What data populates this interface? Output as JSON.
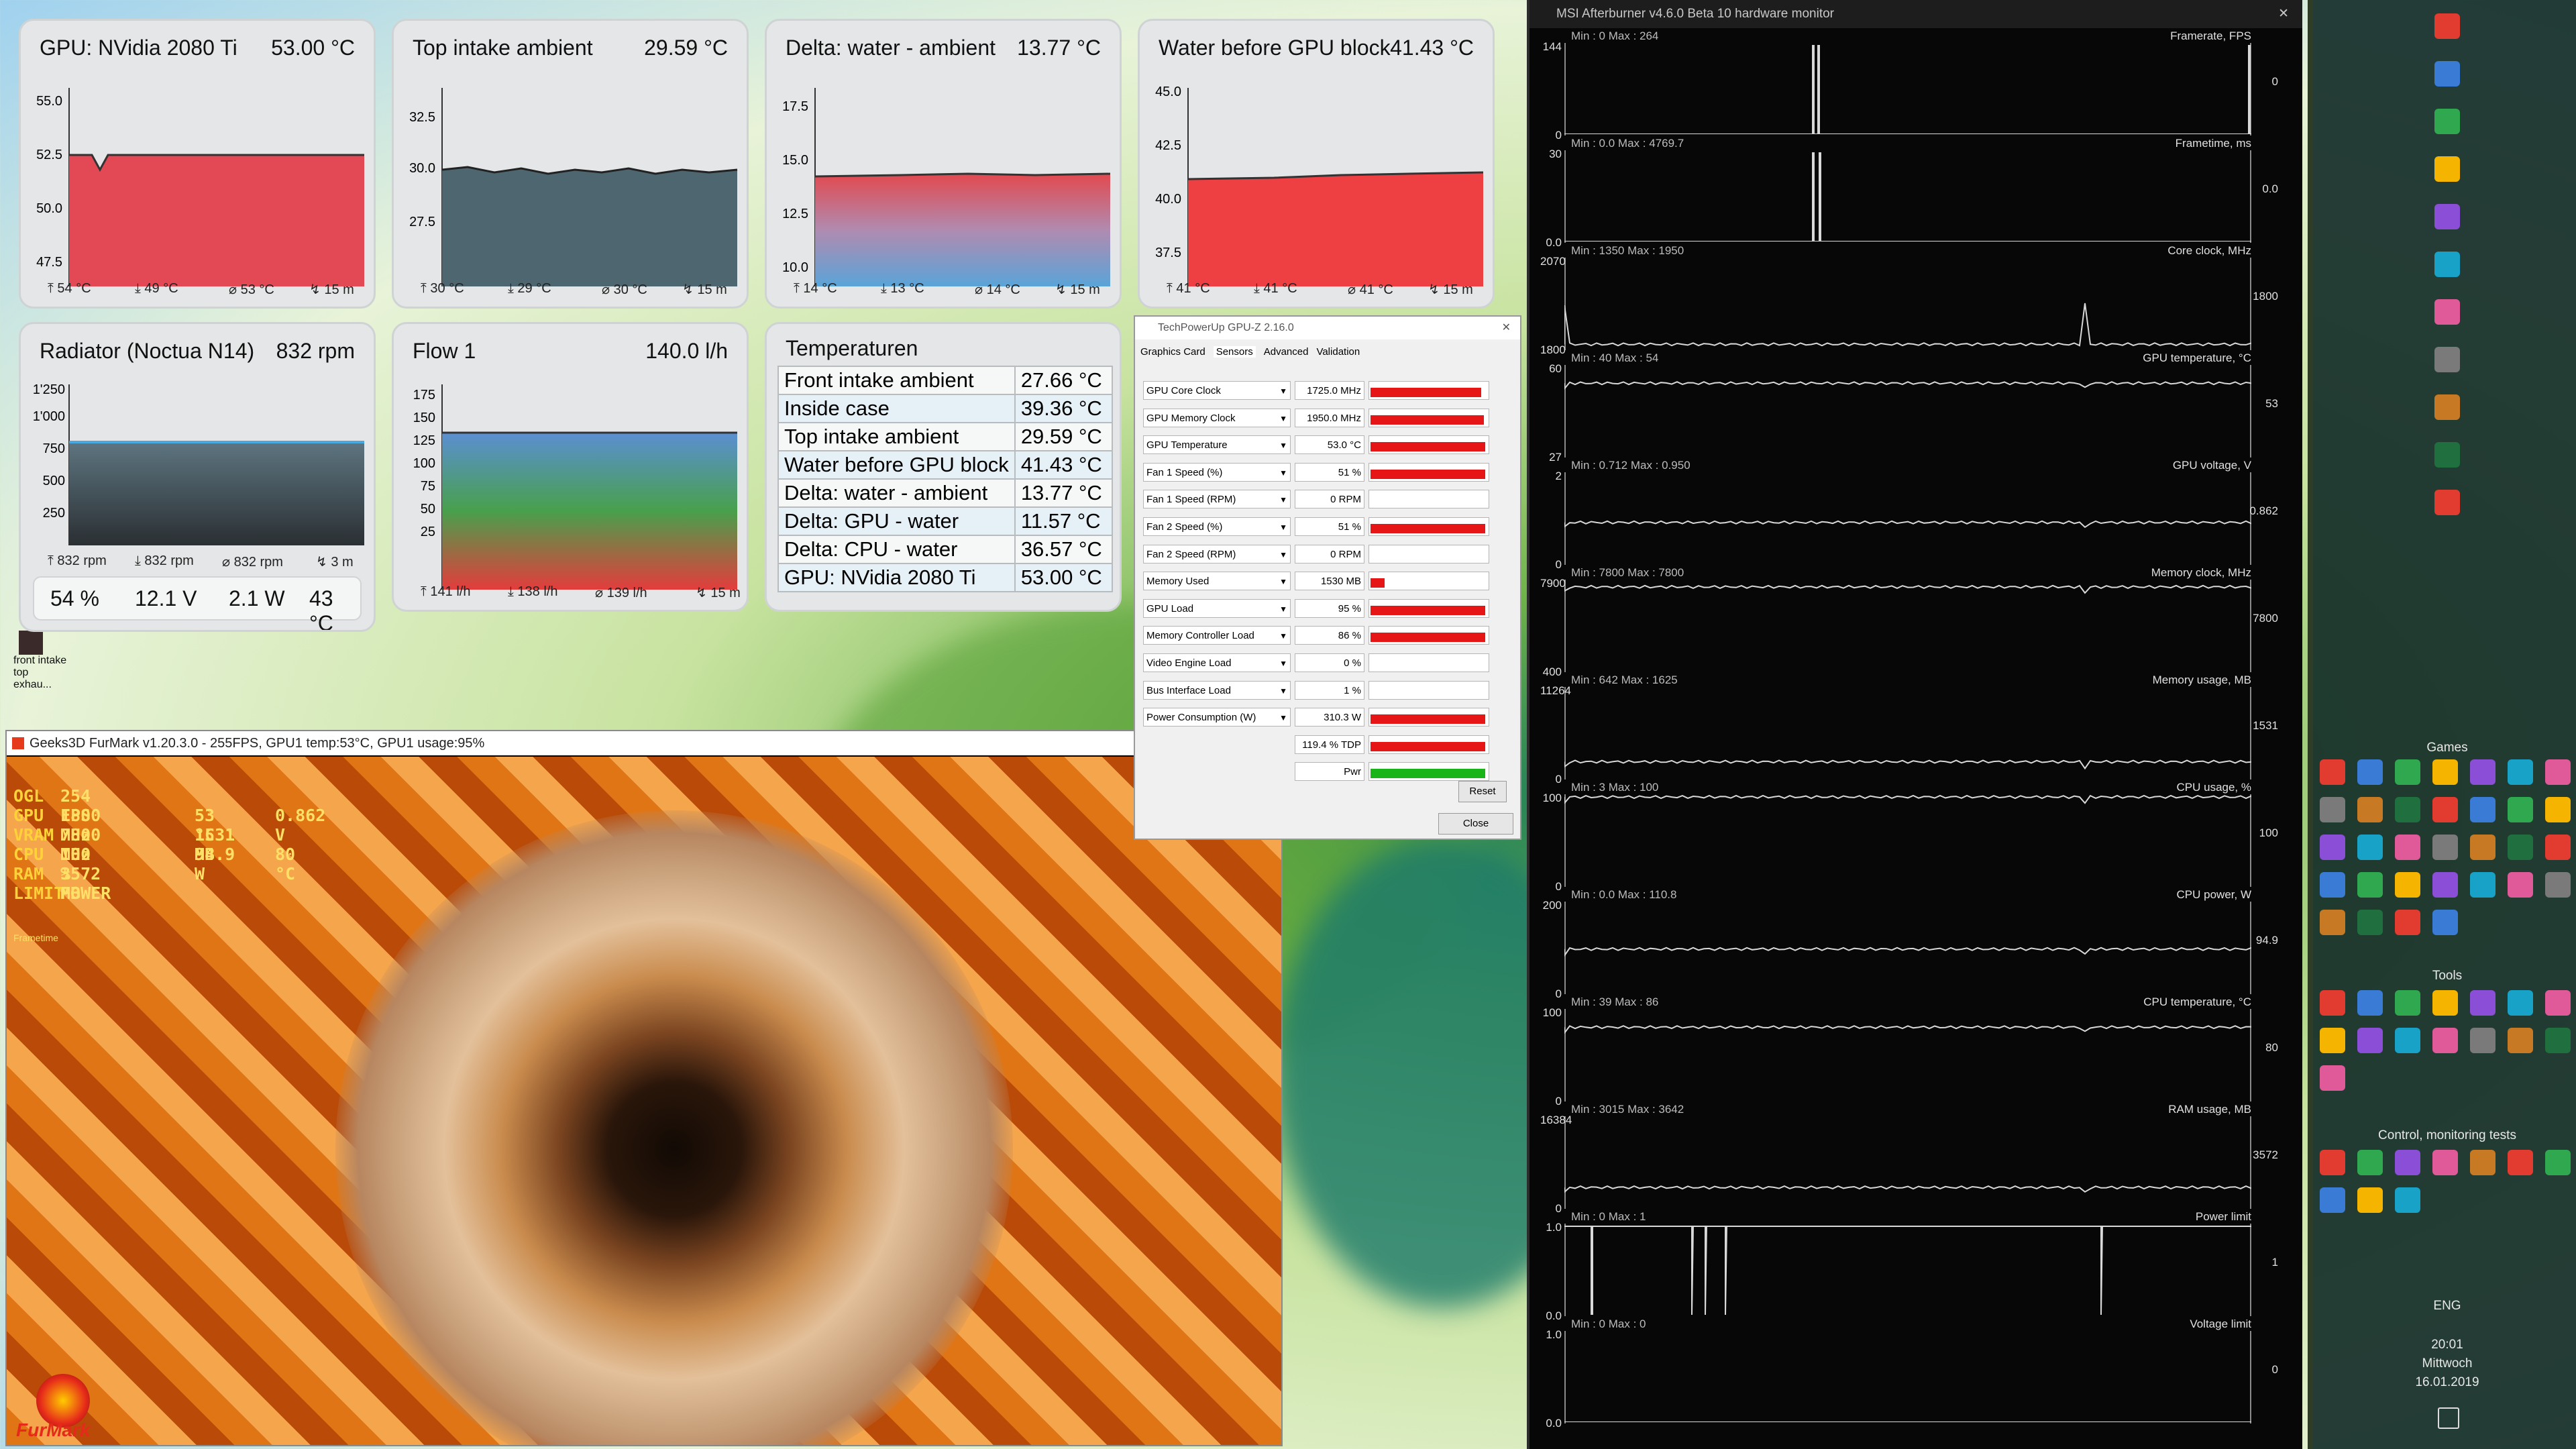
{
  "widgets": {
    "gpu": {
      "title": "GPU: NVidia 2080 Ti",
      "value": "53.00 °C",
      "yticks": [
        "55.0",
        "52.5",
        "50.0",
        "47.5"
      ],
      "footer": [
        "⤒ 54 °C",
        "⤓ 49 °C",
        "⌀ 53 °C",
        "↯ 15 m"
      ]
    },
    "top_intake": {
      "title": "Top intake ambient",
      "value": "29.59 °C",
      "yticks": [
        "32.5",
        "30.0",
        "27.5"
      ],
      "footer": [
        "⤒ 30 °C",
        "⤓ 29 °C",
        "⌀ 30 °C",
        "↯ 15 m"
      ]
    },
    "delta": {
      "title": "Delta: water - ambient",
      "value": "13.77 °C",
      "yticks": [
        "17.5",
        "15.0",
        "12.5",
        "10.0"
      ],
      "footer": [
        "⤒ 14 °C",
        "⤓ 13 °C",
        "⌀ 14 °C",
        "↯ 15 m"
      ]
    },
    "water": {
      "title": "Water before GPU block",
      "value": "41.43 °C",
      "yticks": [
        "45.0",
        "42.5",
        "40.0",
        "37.5"
      ],
      "footer": [
        "⤒ 41 °C",
        "⤓ 41 °C",
        "⌀ 41 °C",
        "↯ 15 m"
      ]
    },
    "radiator": {
      "title": "Radiator (Noctua N14)",
      "value": "832 rpm",
      "yticks": [
        "1'250",
        "1'000",
        "750",
        "500",
        "250"
      ],
      "footer": [
        "⤒ 832 rpm",
        "⤓ 832 rpm",
        "⌀ 832 rpm",
        "↯ 3 m"
      ],
      "stats": [
        "54 %",
        "12.1 V",
        "2.1 W",
        "43 °C"
      ]
    },
    "flow": {
      "title": "Flow 1",
      "value": "140.0 l/h",
      "yticks": [
        "175",
        "150",
        "125",
        "100",
        "75",
        "50",
        "25"
      ],
      "footer": [
        "⤒ 141 l/h",
        "⤓ 138 l/h",
        "⌀ 139 l/h",
        "↯ 15 m"
      ]
    },
    "temps": {
      "title": "Temperaturen",
      "rows": [
        {
          "label": "Front intake ambient",
          "value": "27.66 °C"
        },
        {
          "label": "Inside case",
          "value": "39.36 °C"
        },
        {
          "label": "Top intake ambient",
          "value": "29.59 °C"
        },
        {
          "label": "Water before GPU block",
          "value": "41.43 °C"
        },
        {
          "label": "Delta: water - ambient",
          "value": "13.77 °C"
        },
        {
          "label": "Delta: GPU - water",
          "value": "11.57 °C"
        },
        {
          "label": "Delta: CPU - water",
          "value": "36.57 °C"
        },
        {
          "label": "GPU: NVidia 2080 Ti",
          "value": "53.00 °C"
        }
      ]
    }
  },
  "desktop_icon": {
    "label": "front intake top exhau..."
  },
  "furmark": {
    "title": "Geeks3D FurMark v1.20.3.0 - 255FPS, GPU1 temp:53°C, GPU1 usage:95%",
    "stats": [
      {
        "k": "OGL",
        "v1": "254 FPS"
      },
      {
        "k": "GPU",
        "v1": "1800 MHz",
        "v2": "53 °C",
        "v3": "0.862 V"
      },
      {
        "k": "VRAM",
        "v1": "7800 MHz",
        "v2": "1531 MB"
      },
      {
        "k": "CPU",
        "v1": "100 %",
        "v2": "94.9 W",
        "v3": "80 °C"
      },
      {
        "k": "RAM",
        "v1": "3572 MB"
      },
      {
        "k": "LIMIT",
        "v1": "POWER"
      }
    ],
    "logo": "FurMark",
    "sublabel": "Frametime"
  },
  "gpuz": {
    "title": "TechPowerUp GPU-Z 2.16.0",
    "tabs": [
      "Graphics Card",
      "Sensors",
      "Advanced",
      "Validation"
    ],
    "sensors": [
      {
        "name": "GPU Core Clock",
        "value": "1725.0 MHz",
        "bar": 0.95
      },
      {
        "name": "GPU Memory Clock",
        "value": "1950.0 MHz",
        "bar": 0.97
      },
      {
        "name": "GPU Temperature",
        "value": "53.0 °C",
        "bar": 0.98
      },
      {
        "name": "Fan 1 Speed (%)",
        "value": "51 %",
        "bar": 0.98
      },
      {
        "name": "Fan 1 Speed (RPM)",
        "value": "0 RPM",
        "bar": 0
      },
      {
        "name": "Fan 2 Speed (%)",
        "value": "51 %",
        "bar": 0.98
      },
      {
        "name": "Fan 2 Speed (RPM)",
        "value": "0 RPM",
        "bar": 0
      },
      {
        "name": "Memory Used",
        "value": "1530 MB",
        "bar": 0.12
      },
      {
        "name": "GPU Load",
        "value": "95 %",
        "bar": 0.98
      },
      {
        "name": "Memory Controller Load",
        "value": "86 %",
        "bar": 0.98
      },
      {
        "name": "Video Engine Load",
        "value": "0 %",
        "bar": 0
      },
      {
        "name": "Bus Interface Load",
        "value": "1 %",
        "bar": 0
      },
      {
        "name": "Power Consumption (W)",
        "value": "310.3 W",
        "bar": 0.98
      },
      {
        "name": "",
        "value": "119.4 % TDP",
        "bar": 0.98
      },
      {
        "name": "",
        "value": "Pwr",
        "bar": 0.98,
        "green": true
      }
    ],
    "reset": "Reset",
    "close": "Close"
  },
  "afterburner": {
    "title": "MSI Afterburner v4.6.0 Beta 10 hardware monitor",
    "graphs": [
      {
        "name": "Framerate, FPS",
        "minmax": "Min : 0   Max : 264",
        "ymax": "144",
        "ymin": "0",
        "cur": "0"
      },
      {
        "name": "Frametime, ms",
        "minmax": "Min : 0.0   Max : 4769.7",
        "ymax": "30",
        "ymin": "0.0",
        "cur": "0.0"
      },
      {
        "name": "Core clock, MHz",
        "minmax": "Min : 1350   Max : 1950",
        "ymax": "2070",
        "ymin": "1800",
        "cur": "1800"
      },
      {
        "name": "GPU temperature, °C",
        "minmax": "Min : 40   Max : 54",
        "ymax": "60",
        "ymin": "27",
        "cur": "53"
      },
      {
        "name": "GPU voltage, V",
        "minmax": "Min : 0.712   Max : 0.950",
        "ymax": "2",
        "ymin": "0",
        "cur": "0.862"
      },
      {
        "name": "Memory clock, MHz",
        "minmax": "Min : 7800   Max : 7800",
        "ymax": "7900",
        "ymin": "400",
        "cur": "7800"
      },
      {
        "name": "Memory usage, MB",
        "minmax": "Min : 642   Max : 1625",
        "ymax": "11264",
        "ymin": "0",
        "cur": "1531"
      },
      {
        "name": "CPU usage, %",
        "minmax": "Min : 3   Max : 100",
        "ymax": "100",
        "ymin": "0",
        "cur": "100"
      },
      {
        "name": "CPU power, W",
        "minmax": "Min : 0.0   Max : 110.8",
        "ymax": "200",
        "ymin": "0",
        "cur": "94.9"
      },
      {
        "name": "CPU temperature, °C",
        "minmax": "Min : 39   Max : 86",
        "ymax": "100",
        "ymin": "0",
        "cur": "80"
      },
      {
        "name": "RAM usage, MB",
        "minmax": "Min : 3015   Max : 3642",
        "ymax": "16384",
        "ymin": "0",
        "cur": "3572"
      },
      {
        "name": "Power limit",
        "minmax": "Min : 0   Max : 1",
        "ymax": "1.0",
        "ymin": "0.0",
        "cur": "1"
      },
      {
        "name": "Voltage limit",
        "minmax": "Min : 0   Max : 0",
        "ymax": "1.0",
        "ymin": "0.0",
        "cur": "0"
      }
    ]
  },
  "taskbar": {
    "groups": [
      "Games",
      "Tools",
      "Control, monitoring  tests"
    ],
    "lang": "ENG",
    "time": "20:01",
    "day": "Mittwoch",
    "date": "16.01.2019"
  }
}
